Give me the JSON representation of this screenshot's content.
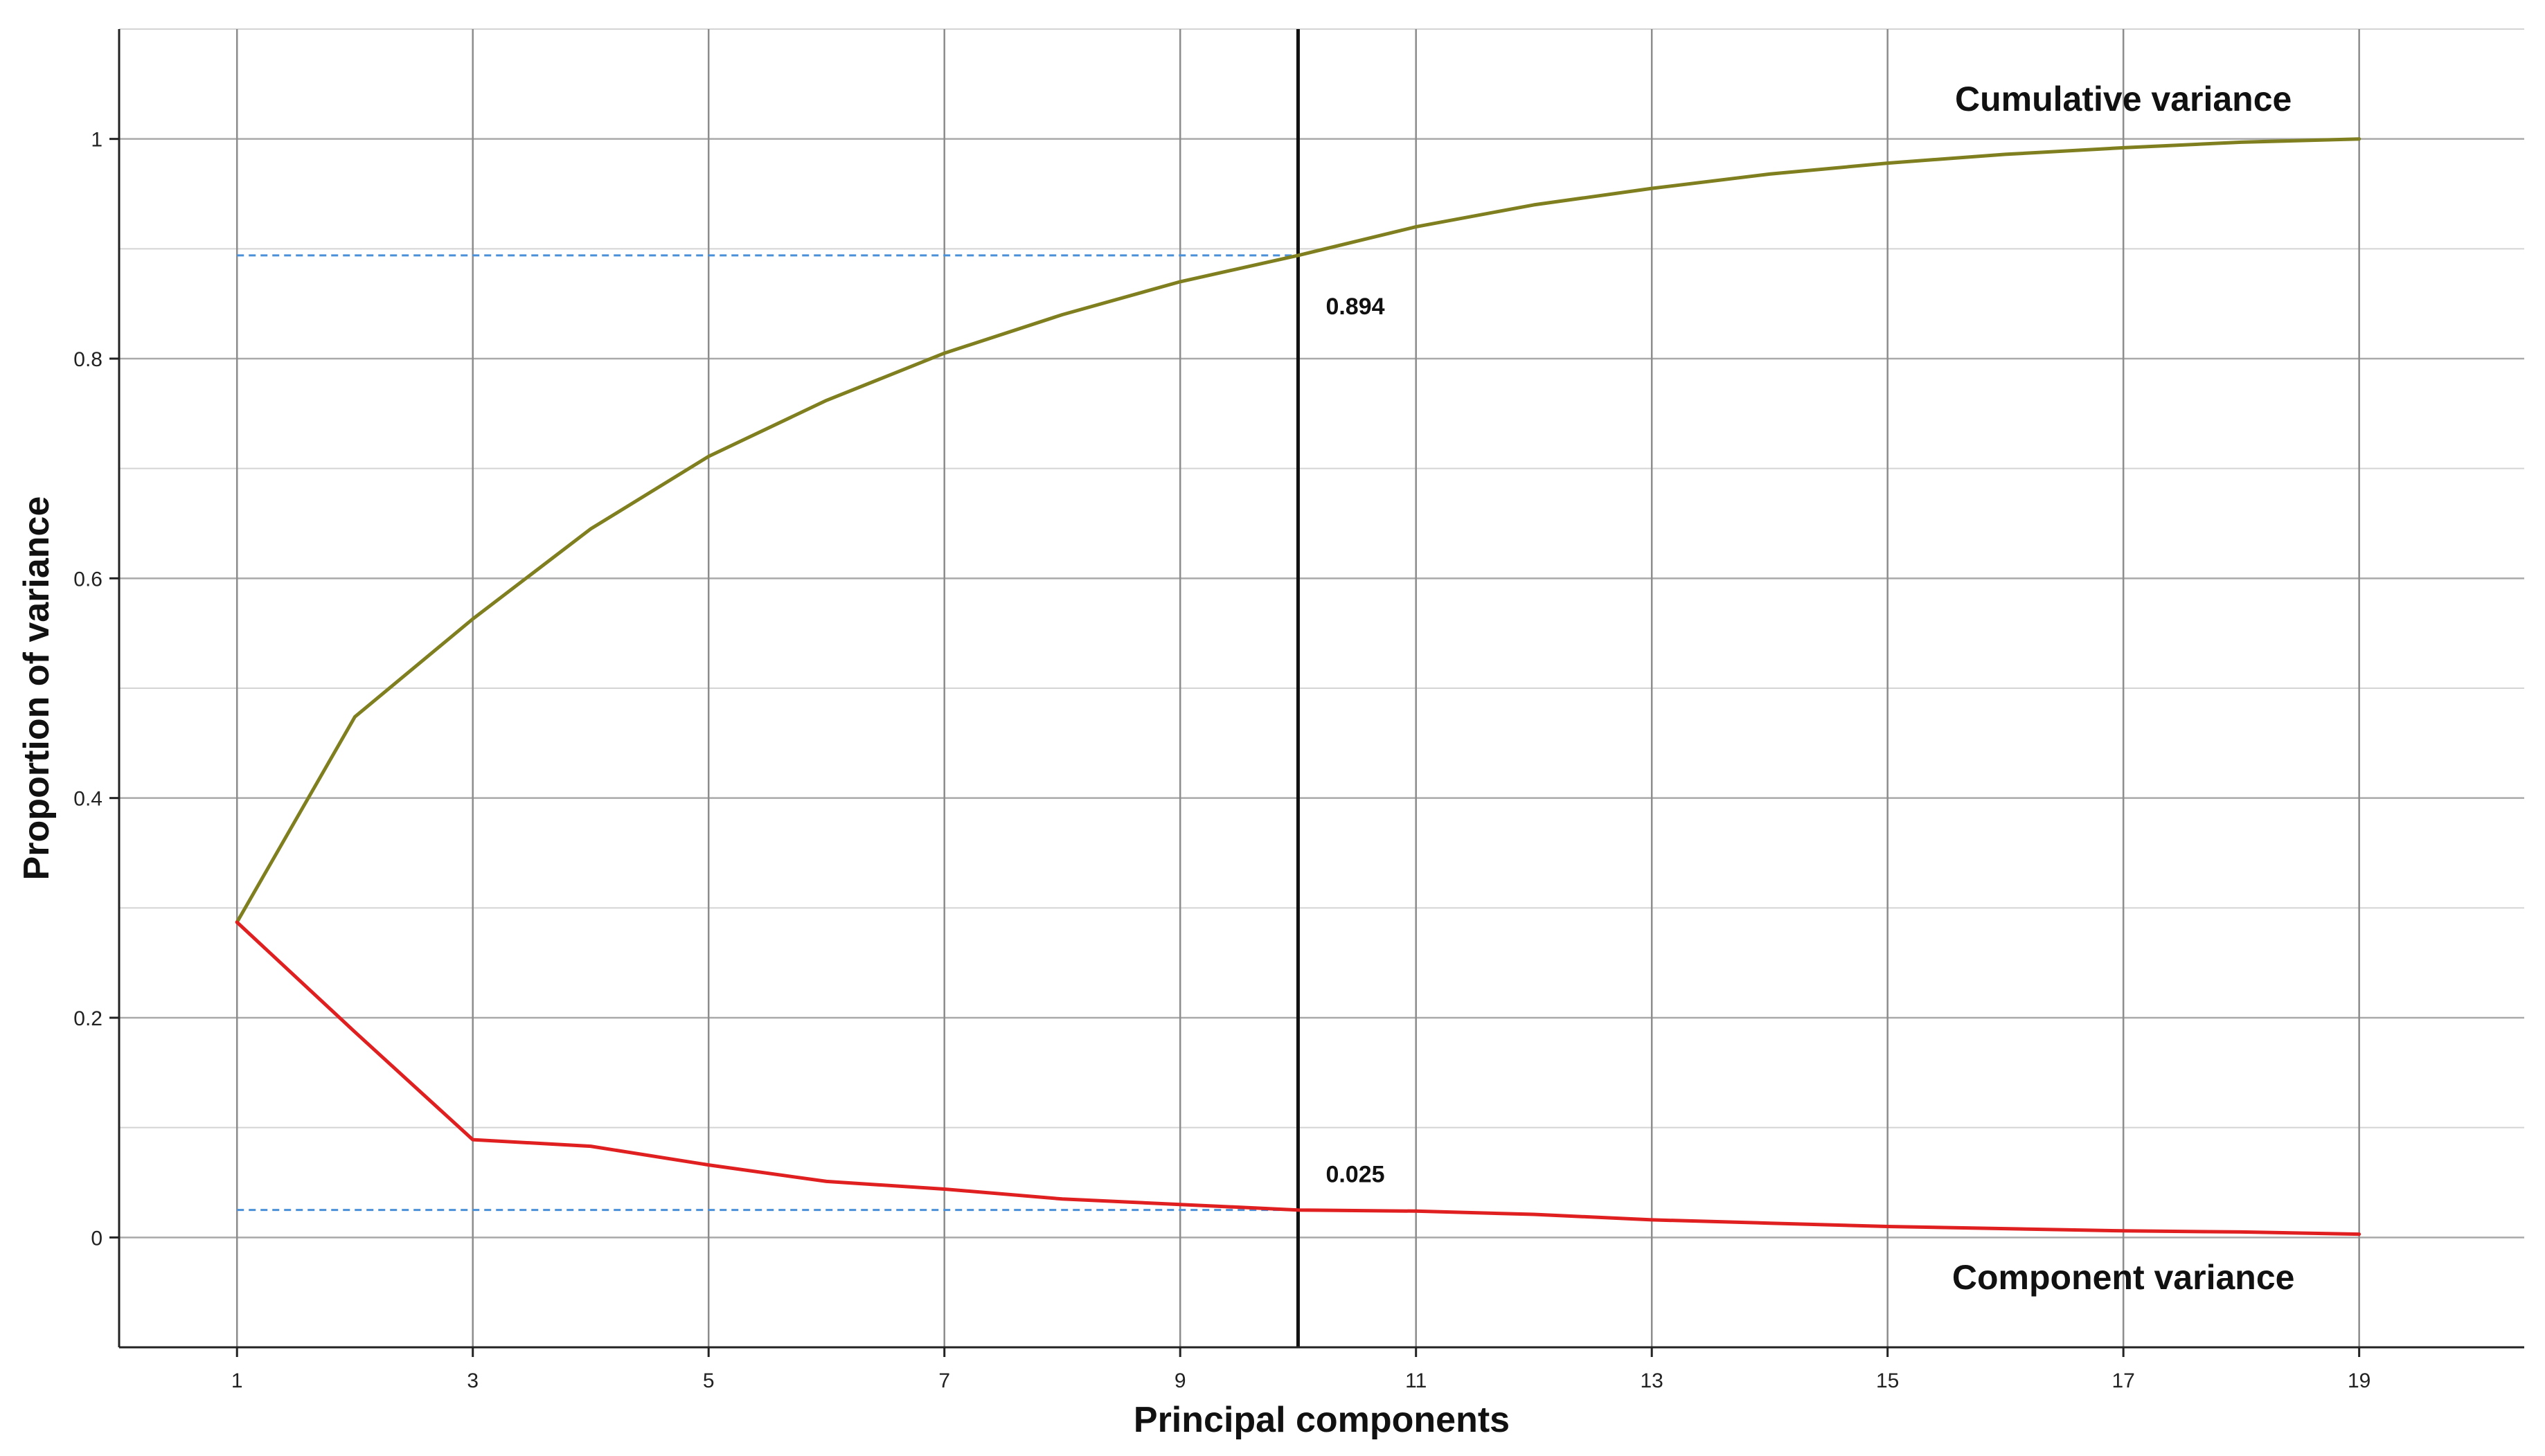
{
  "chart_data": {
    "type": "line",
    "title": "",
    "xlabel": "Principal components",
    "ylabel": "Proportion of variance",
    "xlim": [
      0,
      20.4
    ],
    "ylim": [
      -0.1,
      1.1
    ],
    "x_ticks": [
      1,
      3,
      5,
      7,
      9,
      11,
      13,
      15,
      17,
      19
    ],
    "y_ticks": [
      0,
      0.2,
      0.4,
      0.6,
      0.8,
      1
    ],
    "y_tick_labels": [
      "0",
      "0.2",
      "0.4",
      "0.6",
      "0.8",
      "1"
    ],
    "grid": true,
    "x": [
      1,
      2,
      3,
      4,
      5,
      6,
      7,
      8,
      9,
      10,
      11,
      12,
      13,
      14,
      15,
      16,
      17,
      18,
      19
    ],
    "series": [
      {
        "name": "Cumulative variance",
        "color": "#7f7f1f",
        "values": [
          0.287,
          0.474,
          0.563,
          0.645,
          0.711,
          0.762,
          0.805,
          0.84,
          0.87,
          0.894,
          0.92,
          0.94,
          0.955,
          0.968,
          0.978,
          0.986,
          0.992,
          0.997,
          1.0
        ]
      },
      {
        "name": "Component variance",
        "color": "#e02020",
        "values": [
          0.287,
          0.187,
          0.089,
          0.083,
          0.066,
          0.051,
          0.044,
          0.035,
          0.03,
          0.025,
          0.024,
          0.021,
          0.016,
          0.013,
          0.01,
          0.008,
          0.006,
          0.005,
          0.003
        ]
      }
    ],
    "vertical_marker": {
      "x": 10,
      "color": "#111111"
    },
    "reference_lines": [
      {
        "y": 0.894,
        "x_from": 1,
        "x_to": 10,
        "color": "#4a90d9",
        "style": "dashed"
      },
      {
        "y": 0.025,
        "x_from": 1,
        "x_to": 10,
        "color": "#4a90d9",
        "style": "dashed"
      }
    ],
    "annotations": [
      {
        "text": "0.894",
        "x": 10,
        "y": 0.894
      },
      {
        "text": "0.025",
        "x": 10,
        "y": 0.025
      }
    ]
  }
}
